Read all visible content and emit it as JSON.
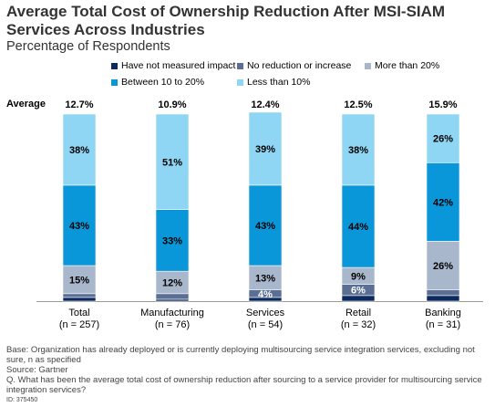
{
  "title": "Average Total Cost of Ownership Reduction After MSI-SIAM Services Across Industries",
  "subtitle": "Percentage of Respondents",
  "average_label": "Average",
  "legend": [
    {
      "name": "Have not measured impact",
      "color": "#0c2a5e"
    },
    {
      "name": "No reduction or increase",
      "color": "#5b6f94"
    },
    {
      "name": "More than 20%",
      "color": "#a9b7cc"
    },
    {
      "name": "Between 10 to 20%",
      "color": "#0a97d9"
    },
    {
      "name": "Less than 10%",
      "color": "#8fd6f4"
    }
  ],
  "footnote": {
    "base": "Base: Organization has already deployed or is currently deploying multisourcing service integration services, excluding not sure, n as specified",
    "source": "Source: Gartner",
    "question": "Q. What has been the average total cost of ownership reduction after sourcing to a service provider for multisourcing service integration services?",
    "id": "ID: 375450"
  },
  "chart_data": {
    "type": "bar",
    "stacked": true,
    "categories": [
      "Total",
      "Manufacturing",
      "Services",
      "Retail",
      "Banking"
    ],
    "category_sublabels": [
      "(n = 257)",
      "(n = 76)",
      "(n = 54)",
      "(n = 32)",
      "(n = 31)"
    ],
    "averages": [
      "12.7%",
      "10.9%",
      "12.4%",
      "12.5%",
      "15.9%"
    ],
    "series": [
      {
        "name": "Have not measured impact",
        "values": [
          2,
          1,
          2,
          3,
          3
        ],
        "labels": [
          "",
          "",
          "",
          "",
          ""
        ]
      },
      {
        "name": "No reduction or increase",
        "values": [
          2,
          3,
          4,
          6,
          3
        ],
        "labels": [
          "",
          "",
          "4%",
          "6%",
          ""
        ]
      },
      {
        "name": "More than 20%",
        "values": [
          15,
          12,
          13,
          9,
          26
        ],
        "labels": [
          "15%",
          "12%",
          "13%",
          "9%",
          "26%"
        ]
      },
      {
        "name": "Between 10 to 20%",
        "values": [
          43,
          33,
          43,
          44,
          42
        ],
        "labels": [
          "43%",
          "33%",
          "43%",
          "44%",
          "42%"
        ]
      },
      {
        "name": "Less than 10%",
        "values": [
          38,
          51,
          39,
          38,
          26
        ],
        "labels": [
          "38%",
          "51%",
          "39%",
          "38%",
          "26%"
        ]
      }
    ],
    "ylim": [
      0,
      100
    ],
    "grid": false,
    "legend_position": "top"
  }
}
